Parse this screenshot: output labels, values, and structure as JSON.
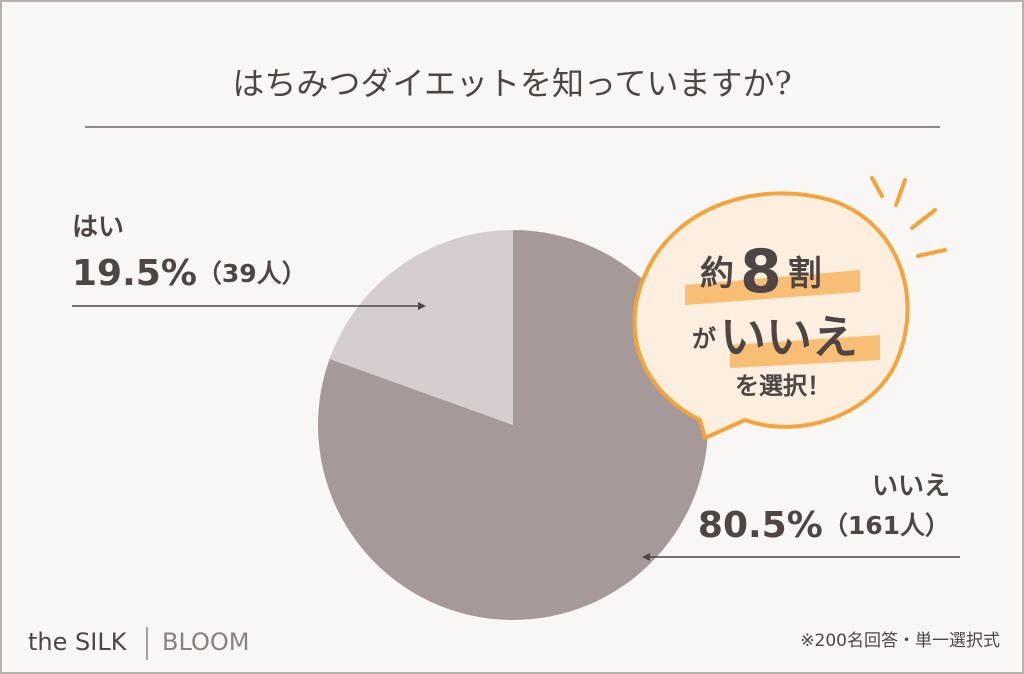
{
  "chart_data": {
    "type": "pie",
    "title": "はちみつダイエットを知っていますか?",
    "categories": [
      "はい",
      "いいえ"
    ],
    "values": [
      19.5,
      80.5
    ],
    "value_labels": [
      "19.5%",
      "80.5%"
    ],
    "counts": [
      39,
      161
    ],
    "count_labels": [
      "（39人）",
      "（161人）"
    ],
    "colors": [
      "#d6cece",
      "#a69999"
    ],
    "callout": [
      "約",
      "8",
      "割",
      "が",
      "いいえ",
      "を選択！"
    ],
    "note": "※200名回答・単一選択式",
    "brand": [
      "the SILK",
      "BLOOM"
    ]
  }
}
